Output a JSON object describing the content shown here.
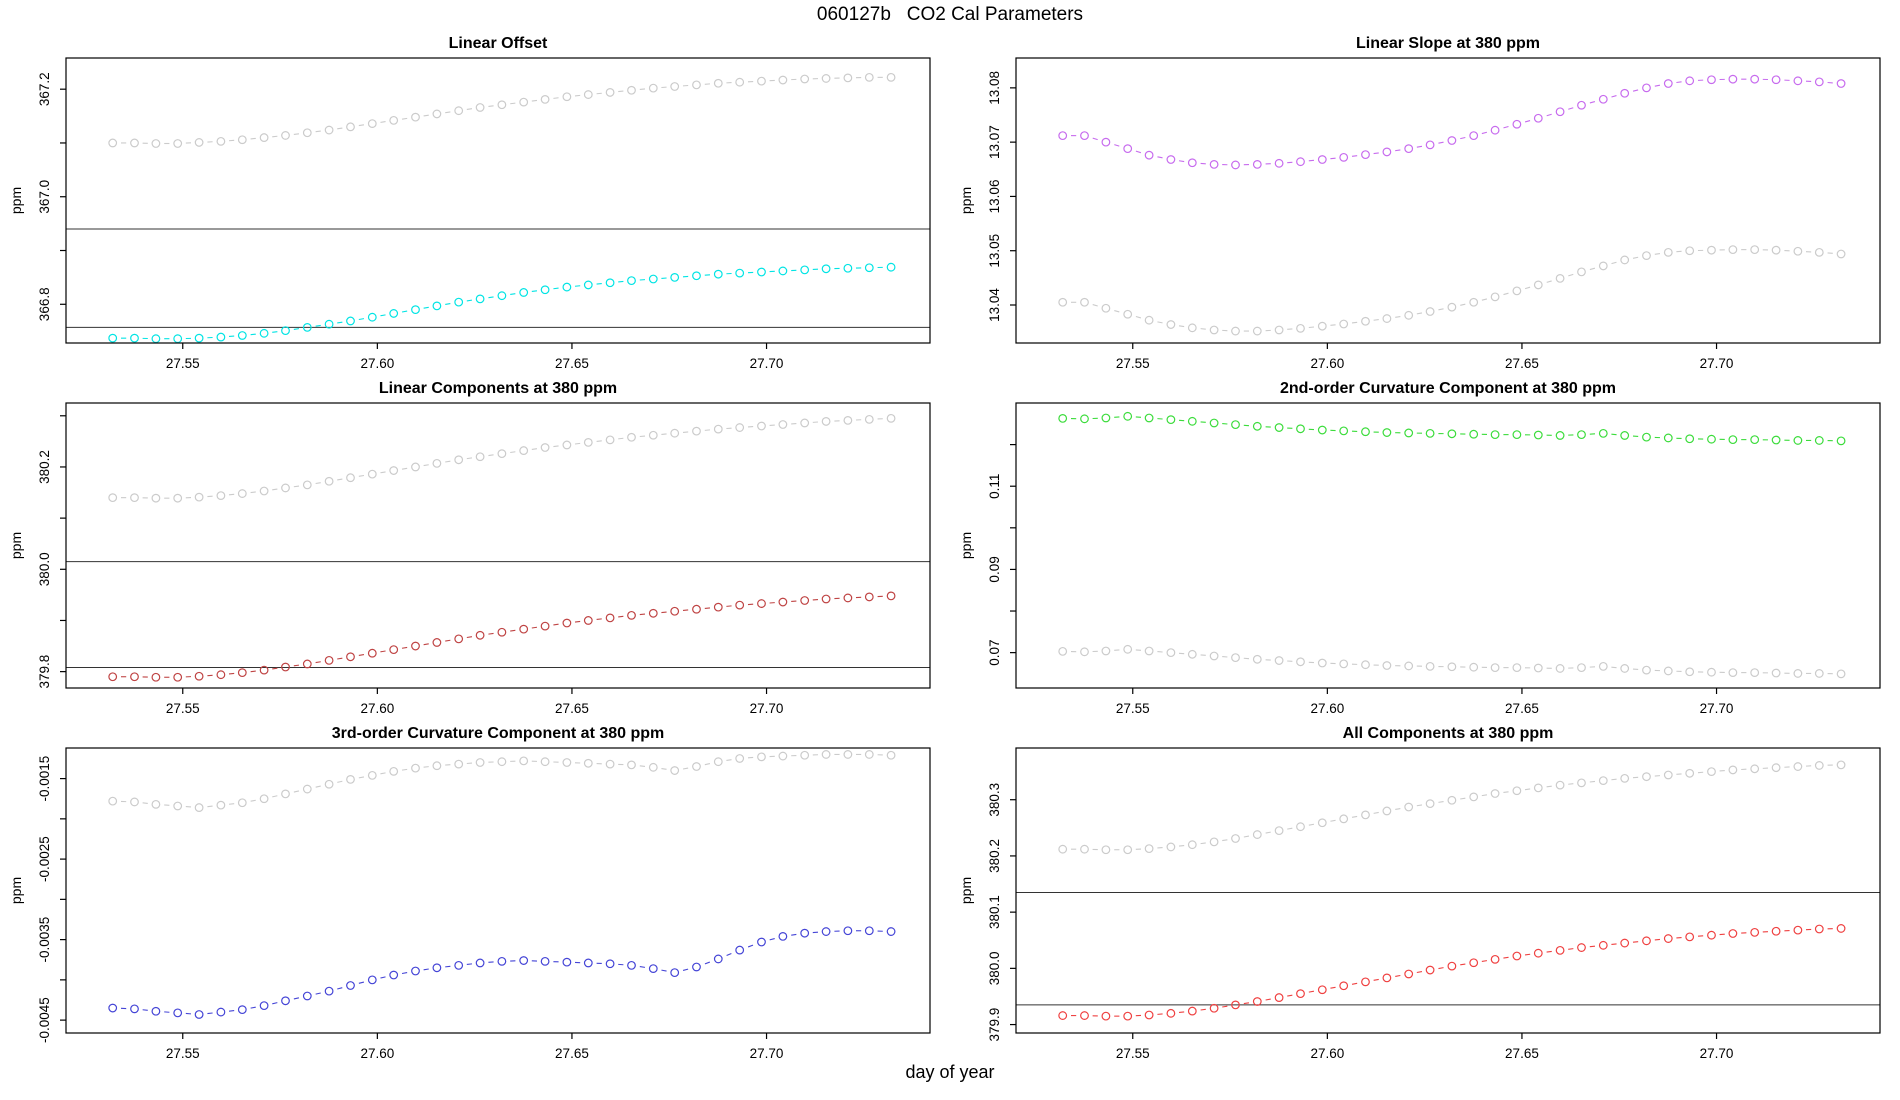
{
  "header": {
    "title": "060127b   CO2 Cal Parameters"
  },
  "axes": {
    "x_title": "day of year",
    "y_unit": "ppm"
  },
  "colors": {
    "background": "#ffffff",
    "axis": "#000000",
    "reference_gray": "#cbcbcb",
    "cyan": "#00e4e4",
    "magenta": "#c76bee",
    "dark_red": "#bf4343",
    "green": "#3bdc3b",
    "blue": "#4444d6",
    "red": "#ef4040"
  },
  "chart_data": [
    {
      "type": "scatter",
      "title": "Linear Offset",
      "ylabel": "ppm",
      "xlim": [
        27.52,
        27.742
      ],
      "ylim": [
        366.728,
        367.258
      ],
      "xticks": [
        27.55,
        27.6,
        27.65,
        27.7
      ],
      "xtick_labels": [
        "27.55",
        "27.60",
        "27.65",
        "27.70"
      ],
      "yticks": [
        366.8,
        366.9,
        367.0,
        367.1,
        367.2
      ],
      "ytick_labels": [
        "366.8",
        "",
        "367.0",
        "",
        "367.2"
      ],
      "ref_lines": [
        366.94,
        366.757
      ],
      "x": [
        27.532,
        27.5376,
        27.5431,
        27.5487,
        27.5542,
        27.5598,
        27.5653,
        27.5709,
        27.5764,
        27.582,
        27.5876,
        27.5931,
        27.5987,
        27.6042,
        27.6098,
        27.6153,
        27.6209,
        27.6264,
        27.632,
        27.6376,
        27.6431,
        27.6487,
        27.6542,
        27.6598,
        27.6653,
        27.6709,
        27.6764,
        27.682,
        27.6876,
        27.6931,
        27.6987,
        27.7042,
        27.7098,
        27.7153,
        27.7209,
        27.7264,
        27.732
      ],
      "series": [
        {
          "name": "gray",
          "color": "#cbcbcb",
          "values": [
            367.1,
            367.1,
            367.099,
            367.099,
            367.101,
            367.103,
            367.106,
            367.11,
            367.114,
            367.119,
            367.124,
            367.13,
            367.136,
            367.142,
            367.148,
            367.154,
            367.16,
            367.166,
            367.171,
            367.176,
            367.181,
            367.186,
            367.19,
            367.194,
            367.198,
            367.202,
            367.205,
            367.208,
            367.211,
            367.213,
            367.215,
            367.217,
            367.219,
            367.22,
            367.221,
            367.222,
            367.222
          ]
        },
        {
          "name": "cyan",
          "color": "#00e4e4",
          "values": [
            366.737,
            366.737,
            366.736,
            366.736,
            366.737,
            366.739,
            366.742,
            366.746,
            366.751,
            366.757,
            366.763,
            366.769,
            366.776,
            366.783,
            366.79,
            366.797,
            366.804,
            366.81,
            366.816,
            366.822,
            366.827,
            366.832,
            366.836,
            366.84,
            366.844,
            366.847,
            366.85,
            366.853,
            366.856,
            366.858,
            366.86,
            366.862,
            366.864,
            366.866,
            366.867,
            366.868,
            366.869
          ]
        }
      ]
    },
    {
      "type": "scatter",
      "title": "Linear Slope at 380 ppm",
      "ylabel": "ppm",
      "xlim": [
        27.52,
        27.742
      ],
      "ylim": [
        13.033,
        13.0855
      ],
      "xticks": [
        27.55,
        27.6,
        27.65,
        27.7
      ],
      "xtick_labels": [
        "27.55",
        "27.60",
        "27.65",
        "27.70"
      ],
      "yticks": [
        13.04,
        13.05,
        13.06,
        13.07,
        13.08
      ],
      "ytick_labels": [
        "13.04",
        "13.05",
        "13.06",
        "13.07",
        "13.08"
      ],
      "ref_lines": [],
      "x": [
        27.532,
        27.5376,
        27.5431,
        27.5487,
        27.5542,
        27.5598,
        27.5653,
        27.5709,
        27.5764,
        27.582,
        27.5876,
        27.5931,
        27.5987,
        27.6042,
        27.6098,
        27.6153,
        27.6209,
        27.6264,
        27.632,
        27.6376,
        27.6431,
        27.6487,
        27.6542,
        27.6598,
        27.6653,
        27.6709,
        27.6764,
        27.682,
        27.6876,
        27.6931,
        27.6987,
        27.7042,
        27.7098,
        27.7153,
        27.7209,
        27.7264,
        27.732
      ],
      "series": [
        {
          "name": "magenta",
          "color": "#c76bee",
          "values": [
            13.0712,
            13.0712,
            13.07,
            13.0688,
            13.0676,
            13.0668,
            13.0662,
            13.0659,
            13.0658,
            13.0659,
            13.0661,
            13.0664,
            13.0668,
            13.0672,
            13.0677,
            13.0682,
            13.0688,
            13.0695,
            13.0703,
            13.0712,
            13.0722,
            13.0733,
            13.0744,
            13.0756,
            13.0768,
            13.0779,
            13.079,
            13.08,
            13.0808,
            13.0813,
            13.0815,
            13.0816,
            13.0816,
            13.0815,
            13.0813,
            13.0811,
            13.0808
          ]
        },
        {
          "name": "gray",
          "color": "#cbcbcb",
          "values": [
            13.0405,
            13.0405,
            13.0394,
            13.0383,
            13.0372,
            13.0364,
            13.0358,
            13.0354,
            13.0352,
            13.0352,
            13.0354,
            13.0357,
            13.0361,
            13.0365,
            13.037,
            13.0375,
            13.0381,
            13.0388,
            13.0396,
            13.0405,
            13.0415,
            13.0426,
            13.0437,
            13.0449,
            13.0461,
            13.0472,
            13.0483,
            13.0491,
            13.0497,
            13.05,
            13.0501,
            13.0502,
            13.0502,
            13.0501,
            13.0499,
            13.0497,
            13.0494
          ]
        }
      ]
    },
    {
      "type": "scatter",
      "title": "Linear Components at 380 ppm",
      "ylabel": "ppm",
      "xlim": [
        27.52,
        27.742
      ],
      "ylim": [
        379.768,
        380.325
      ],
      "xticks": [
        27.55,
        27.6,
        27.65,
        27.7
      ],
      "xtick_labels": [
        "27.55",
        "27.60",
        "27.65",
        "27.70"
      ],
      "yticks": [
        379.8,
        379.9,
        380.0,
        380.1,
        380.2,
        380.3
      ],
      "ytick_labels": [
        "379.8",
        "",
        "380.0",
        "",
        "380.2",
        ""
      ],
      "ref_lines": [
        380.015,
        379.808
      ],
      "x": [
        27.532,
        27.5376,
        27.5431,
        27.5487,
        27.5542,
        27.5598,
        27.5653,
        27.5709,
        27.5764,
        27.582,
        27.5876,
        27.5931,
        27.5987,
        27.6042,
        27.6098,
        27.6153,
        27.6209,
        27.6264,
        27.632,
        27.6376,
        27.6431,
        27.6487,
        27.6542,
        27.6598,
        27.6653,
        27.6709,
        27.6764,
        27.682,
        27.6876,
        27.6931,
        27.6987,
        27.7042,
        27.7098,
        27.7153,
        27.7209,
        27.7264,
        27.732
      ],
      "series": [
        {
          "name": "gray",
          "color": "#cbcbcb",
          "values": [
            380.14,
            380.14,
            380.139,
            380.139,
            380.141,
            380.144,
            380.148,
            380.153,
            380.159,
            380.165,
            380.172,
            380.179,
            380.186,
            380.193,
            380.2,
            380.207,
            380.214,
            380.22,
            380.226,
            380.232,
            380.238,
            380.243,
            380.248,
            380.253,
            380.258,
            380.262,
            380.266,
            380.27,
            380.274,
            380.277,
            380.28,
            380.283,
            380.286,
            380.289,
            380.291,
            380.293,
            380.295
          ]
        },
        {
          "name": "dark-red",
          "color": "#bf4343",
          "values": [
            379.79,
            379.79,
            379.789,
            379.789,
            379.791,
            379.794,
            379.798,
            379.803,
            379.809,
            379.815,
            379.822,
            379.829,
            379.836,
            379.843,
            379.85,
            379.857,
            379.864,
            379.871,
            379.877,
            379.883,
            379.889,
            379.895,
            379.9,
            379.905,
            379.91,
            379.914,
            379.918,
            379.922,
            379.926,
            379.93,
            379.933,
            379.936,
            379.939,
            379.942,
            379.944,
            379.946,
            379.948
          ]
        }
      ]
    },
    {
      "type": "scatter",
      "title": "2nd-order Curvature Component at 380 ppm",
      "ylabel": "ppm",
      "xlim": [
        27.52,
        27.742
      ],
      "ylim": [
        0.0615,
        0.13
      ],
      "xticks": [
        27.55,
        27.6,
        27.65,
        27.7
      ],
      "xtick_labels": [
        "27.55",
        "27.60",
        "27.65",
        "27.70"
      ],
      "yticks": [
        0.07,
        0.08,
        0.09,
        0.1,
        0.11,
        0.12
      ],
      "ytick_labels": [
        "0.07",
        "",
        "0.09",
        "",
        "0.11",
        ""
      ],
      "ref_lines": [],
      "x": [
        27.532,
        27.5376,
        27.5431,
        27.5487,
        27.5542,
        27.5598,
        27.5653,
        27.5709,
        27.5764,
        27.582,
        27.5876,
        27.5931,
        27.5987,
        27.6042,
        27.6098,
        27.6153,
        27.6209,
        27.6264,
        27.632,
        27.6376,
        27.6431,
        27.6487,
        27.6542,
        27.6598,
        27.6653,
        27.6709,
        27.6764,
        27.682,
        27.6876,
        27.6931,
        27.6987,
        27.7042,
        27.7098,
        27.7153,
        27.7209,
        27.7264,
        27.732
      ],
      "series": [
        {
          "name": "green",
          "color": "#3bdc3b",
          "values": [
            0.1263,
            0.1262,
            0.1264,
            0.1268,
            0.1264,
            0.126,
            0.1256,
            0.1252,
            0.1248,
            0.1244,
            0.1241,
            0.1238,
            0.1235,
            0.1233,
            0.1231,
            0.1229,
            0.1228,
            0.1227,
            0.1226,
            0.1225,
            0.1224,
            0.1224,
            0.1223,
            0.1222,
            0.1224,
            0.1227,
            0.1222,
            0.1218,
            0.1216,
            0.1214,
            0.1213,
            0.1212,
            0.1212,
            0.1211,
            0.121,
            0.121,
            0.1209
          ]
        },
        {
          "name": "gray",
          "color": "#cbcbcb",
          "values": [
            0.0703,
            0.0702,
            0.0704,
            0.0708,
            0.0704,
            0.07,
            0.0696,
            0.0692,
            0.0688,
            0.0684,
            0.0681,
            0.0678,
            0.0675,
            0.0673,
            0.0671,
            0.0669,
            0.0668,
            0.0667,
            0.0666,
            0.0665,
            0.0664,
            0.0664,
            0.0663,
            0.0662,
            0.0664,
            0.0667,
            0.0662,
            0.0658,
            0.0656,
            0.0654,
            0.0653,
            0.0652,
            0.0652,
            0.0651,
            0.065,
            0.065,
            0.0649
          ]
        }
      ]
    },
    {
      "type": "scatter",
      "title": "3rd-order Curvature Component at 380 ppm",
      "ylabel": "ppm",
      "xlim": [
        27.52,
        27.742
      ],
      "ylim": [
        -0.00466,
        -0.00112
      ],
      "xticks": [
        27.55,
        27.6,
        27.65,
        27.7
      ],
      "xtick_labels": [
        "27.55",
        "27.60",
        "27.65",
        "27.70"
      ],
      "yticks": [
        -0.0045,
        -0.004,
        -0.0035,
        -0.003,
        -0.0025,
        -0.002,
        -0.0015
      ],
      "ytick_labels": [
        "-0.0045",
        "",
        "-0.0035",
        "",
        "-0.0025",
        "",
        "-0.0015"
      ],
      "ref_lines": [],
      "x": [
        27.532,
        27.5376,
        27.5431,
        27.5487,
        27.5542,
        27.5598,
        27.5653,
        27.5709,
        27.5764,
        27.582,
        27.5876,
        27.5931,
        27.5987,
        27.6042,
        27.6098,
        27.6153,
        27.6209,
        27.6264,
        27.632,
        27.6376,
        27.6431,
        27.6487,
        27.6542,
        27.6598,
        27.6653,
        27.6709,
        27.6764,
        27.682,
        27.6876,
        27.6931,
        27.6987,
        27.7042,
        27.7098,
        27.7153,
        27.7209,
        27.7264,
        27.732
      ],
      "series": [
        {
          "name": "gray",
          "color": "#cbcbcb",
          "values": [
            -0.00178,
            -0.00179,
            -0.00182,
            -0.00184,
            -0.00186,
            -0.00183,
            -0.0018,
            -0.00175,
            -0.00169,
            -0.00163,
            -0.00157,
            -0.00151,
            -0.00146,
            -0.00141,
            -0.00137,
            -0.00134,
            -0.00132,
            -0.0013,
            -0.00129,
            -0.00128,
            -0.00129,
            -0.0013,
            -0.00131,
            -0.00132,
            -0.00133,
            -0.00136,
            -0.0014,
            -0.00135,
            -0.00129,
            -0.00125,
            -0.00123,
            -0.00122,
            -0.00121,
            -0.0012,
            -0.0012,
            -0.0012,
            -0.00121
          ]
        },
        {
          "name": "blue",
          "color": "#4444d6",
          "values": [
            -0.00435,
            -0.00436,
            -0.00439,
            -0.00441,
            -0.00443,
            -0.0044,
            -0.00437,
            -0.00432,
            -0.00426,
            -0.0042,
            -0.00414,
            -0.00407,
            -0.004,
            -0.00394,
            -0.00389,
            -0.00385,
            -0.00382,
            -0.00379,
            -0.00377,
            -0.00376,
            -0.00377,
            -0.00378,
            -0.00379,
            -0.0038,
            -0.00382,
            -0.00386,
            -0.00391,
            -0.00384,
            -0.00374,
            -0.00363,
            -0.00353,
            -0.00346,
            -0.00342,
            -0.0034,
            -0.00339,
            -0.00339,
            -0.0034
          ]
        }
      ]
    },
    {
      "type": "scatter",
      "title": "All Components at 380 ppm",
      "ylabel": "ppm",
      "xlim": [
        27.52,
        27.742
      ],
      "ylim": [
        379.885,
        380.392
      ],
      "xticks": [
        27.55,
        27.6,
        27.65,
        27.7
      ],
      "xtick_labels": [
        "27.55",
        "27.60",
        "27.65",
        "27.70"
      ],
      "yticks": [
        379.9,
        380.0,
        380.1,
        380.2,
        380.3
      ],
      "ytick_labels": [
        "379.9",
        "380.0",
        "380.1",
        "380.2",
        "380.3"
      ],
      "ref_lines": [
        380.135,
        379.935
      ],
      "x": [
        27.532,
        27.5376,
        27.5431,
        27.5487,
        27.5542,
        27.5598,
        27.5653,
        27.5709,
        27.5764,
        27.582,
        27.5876,
        27.5931,
        27.5987,
        27.6042,
        27.6098,
        27.6153,
        27.6209,
        27.6264,
        27.632,
        27.6376,
        27.6431,
        27.6487,
        27.6542,
        27.6598,
        27.6653,
        27.6709,
        27.6764,
        27.682,
        27.6876,
        27.6931,
        27.6987,
        27.7042,
        27.7098,
        27.7153,
        27.7209,
        27.7264,
        27.732
      ],
      "series": [
        {
          "name": "gray",
          "color": "#cbcbcb",
          "values": [
            380.212,
            380.212,
            380.211,
            380.211,
            380.213,
            380.216,
            380.22,
            380.225,
            380.231,
            380.238,
            380.245,
            380.252,
            380.259,
            380.266,
            380.273,
            380.28,
            380.287,
            380.293,
            380.299,
            380.305,
            380.311,
            380.316,
            380.321,
            380.326,
            380.33,
            380.334,
            380.338,
            380.341,
            380.344,
            380.347,
            380.35,
            380.353,
            380.355,
            380.357,
            380.359,
            380.361,
            380.362
          ]
        },
        {
          "name": "red",
          "color": "#ef4040",
          "values": [
            379.916,
            379.916,
            379.915,
            379.915,
            379.917,
            379.92,
            379.924,
            379.929,
            379.935,
            379.941,
            379.948,
            379.955,
            379.962,
            379.969,
            379.976,
            379.983,
            379.99,
            379.997,
            380.004,
            380.01,
            380.016,
            380.022,
            380.027,
            380.032,
            380.037,
            380.041,
            380.045,
            380.049,
            380.053,
            380.056,
            380.059,
            380.062,
            380.064,
            380.066,
            380.068,
            380.07,
            380.071
          ]
        }
      ]
    }
  ]
}
